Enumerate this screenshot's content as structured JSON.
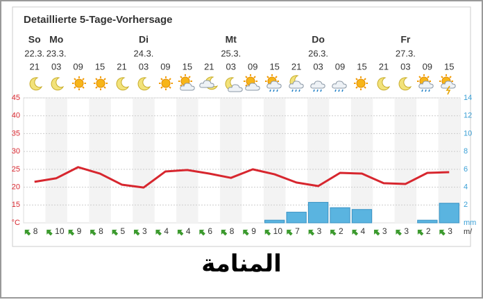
{
  "chart_data": {
    "type": "weather",
    "title": "Detaillierte 5-Tage-Vorhersage",
    "day_names": [
      "So",
      "Mo",
      null,
      null,
      null,
      "Di",
      null,
      null,
      null,
      "Mt",
      null,
      null,
      null,
      "Do",
      null,
      null,
      null,
      "Fr",
      null,
      null
    ],
    "dates": [
      "22.3.",
      "23.3.",
      null,
      null,
      null,
      "24.3.",
      null,
      null,
      null,
      "25.3.",
      null,
      null,
      null,
      "26.3.",
      null,
      null,
      null,
      "27.3.",
      null,
      null
    ],
    "categories": [
      "21",
      "03",
      "09",
      "15",
      "21",
      "03",
      "09",
      "15",
      "21",
      "03",
      "09",
      "15",
      "21",
      "03",
      "09",
      "15",
      "21",
      "03",
      "09",
      "15"
    ],
    "series": [
      {
        "type": "line",
        "color": "#d7262e",
        "values": [
          21.5,
          22.5,
          25.6,
          23.8,
          20.7,
          19.9,
          24.4,
          24.8,
          23.8,
          22.6,
          25,
          23.6,
          21.3,
          20.3,
          24,
          23.8,
          21.1,
          20.9,
          24,
          24.2
        ]
      },
      {
        "type": "bar",
        "axis": "y2",
        "color": "#5ab4e0",
        "values": [
          null,
          null,
          null,
          null,
          null,
          null,
          null,
          null,
          null,
          null,
          null,
          0.3,
          1.2,
          2.3,
          1.7,
          1.5,
          null,
          null,
          0.3,
          2.2
        ]
      }
    ],
    "ylim": [
      10,
      45
    ],
    "yticks": [
      {
        "value": 10,
        "label": "°C"
      },
      15,
      20,
      25,
      30,
      35,
      40,
      45
    ],
    "ycolor": "#d7262e",
    "y2lim": [
      0,
      14
    ],
    "y2ticks": [
      {
        "value": 0,
        "label": "mm"
      },
      2,
      4,
      6,
      8,
      10,
      12,
      14
    ],
    "y2color": "#3ba0d6",
    "grid": true,
    "wind": [
      8,
      10,
      9,
      8,
      5,
      3,
      4,
      4,
      6,
      8,
      9,
      10,
      7,
      3,
      2,
      4,
      3,
      3,
      2,
      3
    ],
    "wind_unit": "m/"
  },
  "location": "المنامة"
}
